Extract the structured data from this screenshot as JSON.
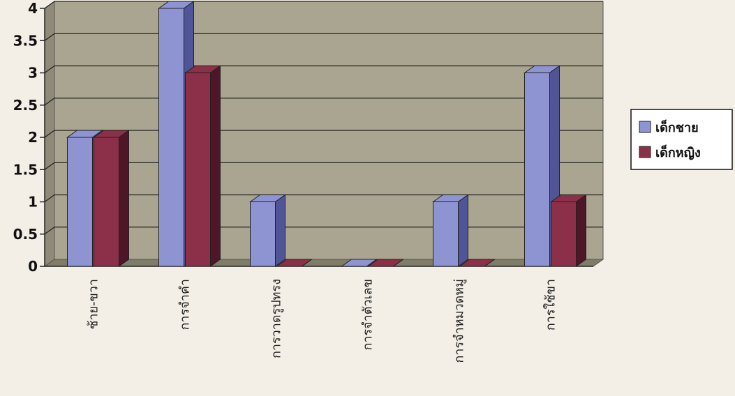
{
  "chart_data": {
    "type": "bar",
    "title": "",
    "xlabel": "",
    "ylabel": "",
    "ylim": [
      0,
      4
    ],
    "yticks": [
      "0",
      "0.5",
      "1",
      "1.5",
      "2",
      "2.5",
      "3",
      "3.5",
      "4"
    ],
    "categories": [
      "ซ้าย-ขวา",
      "การจำคำ",
      "การวาดรูปทรง",
      "การจำตัวเลข",
      "การจำหมวดหมู่",
      "การใช้ขา"
    ],
    "series": [
      {
        "name": "เด็กชาย",
        "values": [
          2,
          4,
          1,
          0,
          1,
          3
        ]
      },
      {
        "name": "เด็กหญิง",
        "values": [
          2,
          3,
          0,
          0,
          0,
          1
        ]
      }
    ],
    "grid": true,
    "legend_position": "right"
  },
  "colors": {
    "plot_background": "#a9a590",
    "boys_front": "#8e94d2",
    "boys_side": "#4f5596",
    "girls_front": "#8c2f48",
    "girls_side": "#4e1626"
  }
}
